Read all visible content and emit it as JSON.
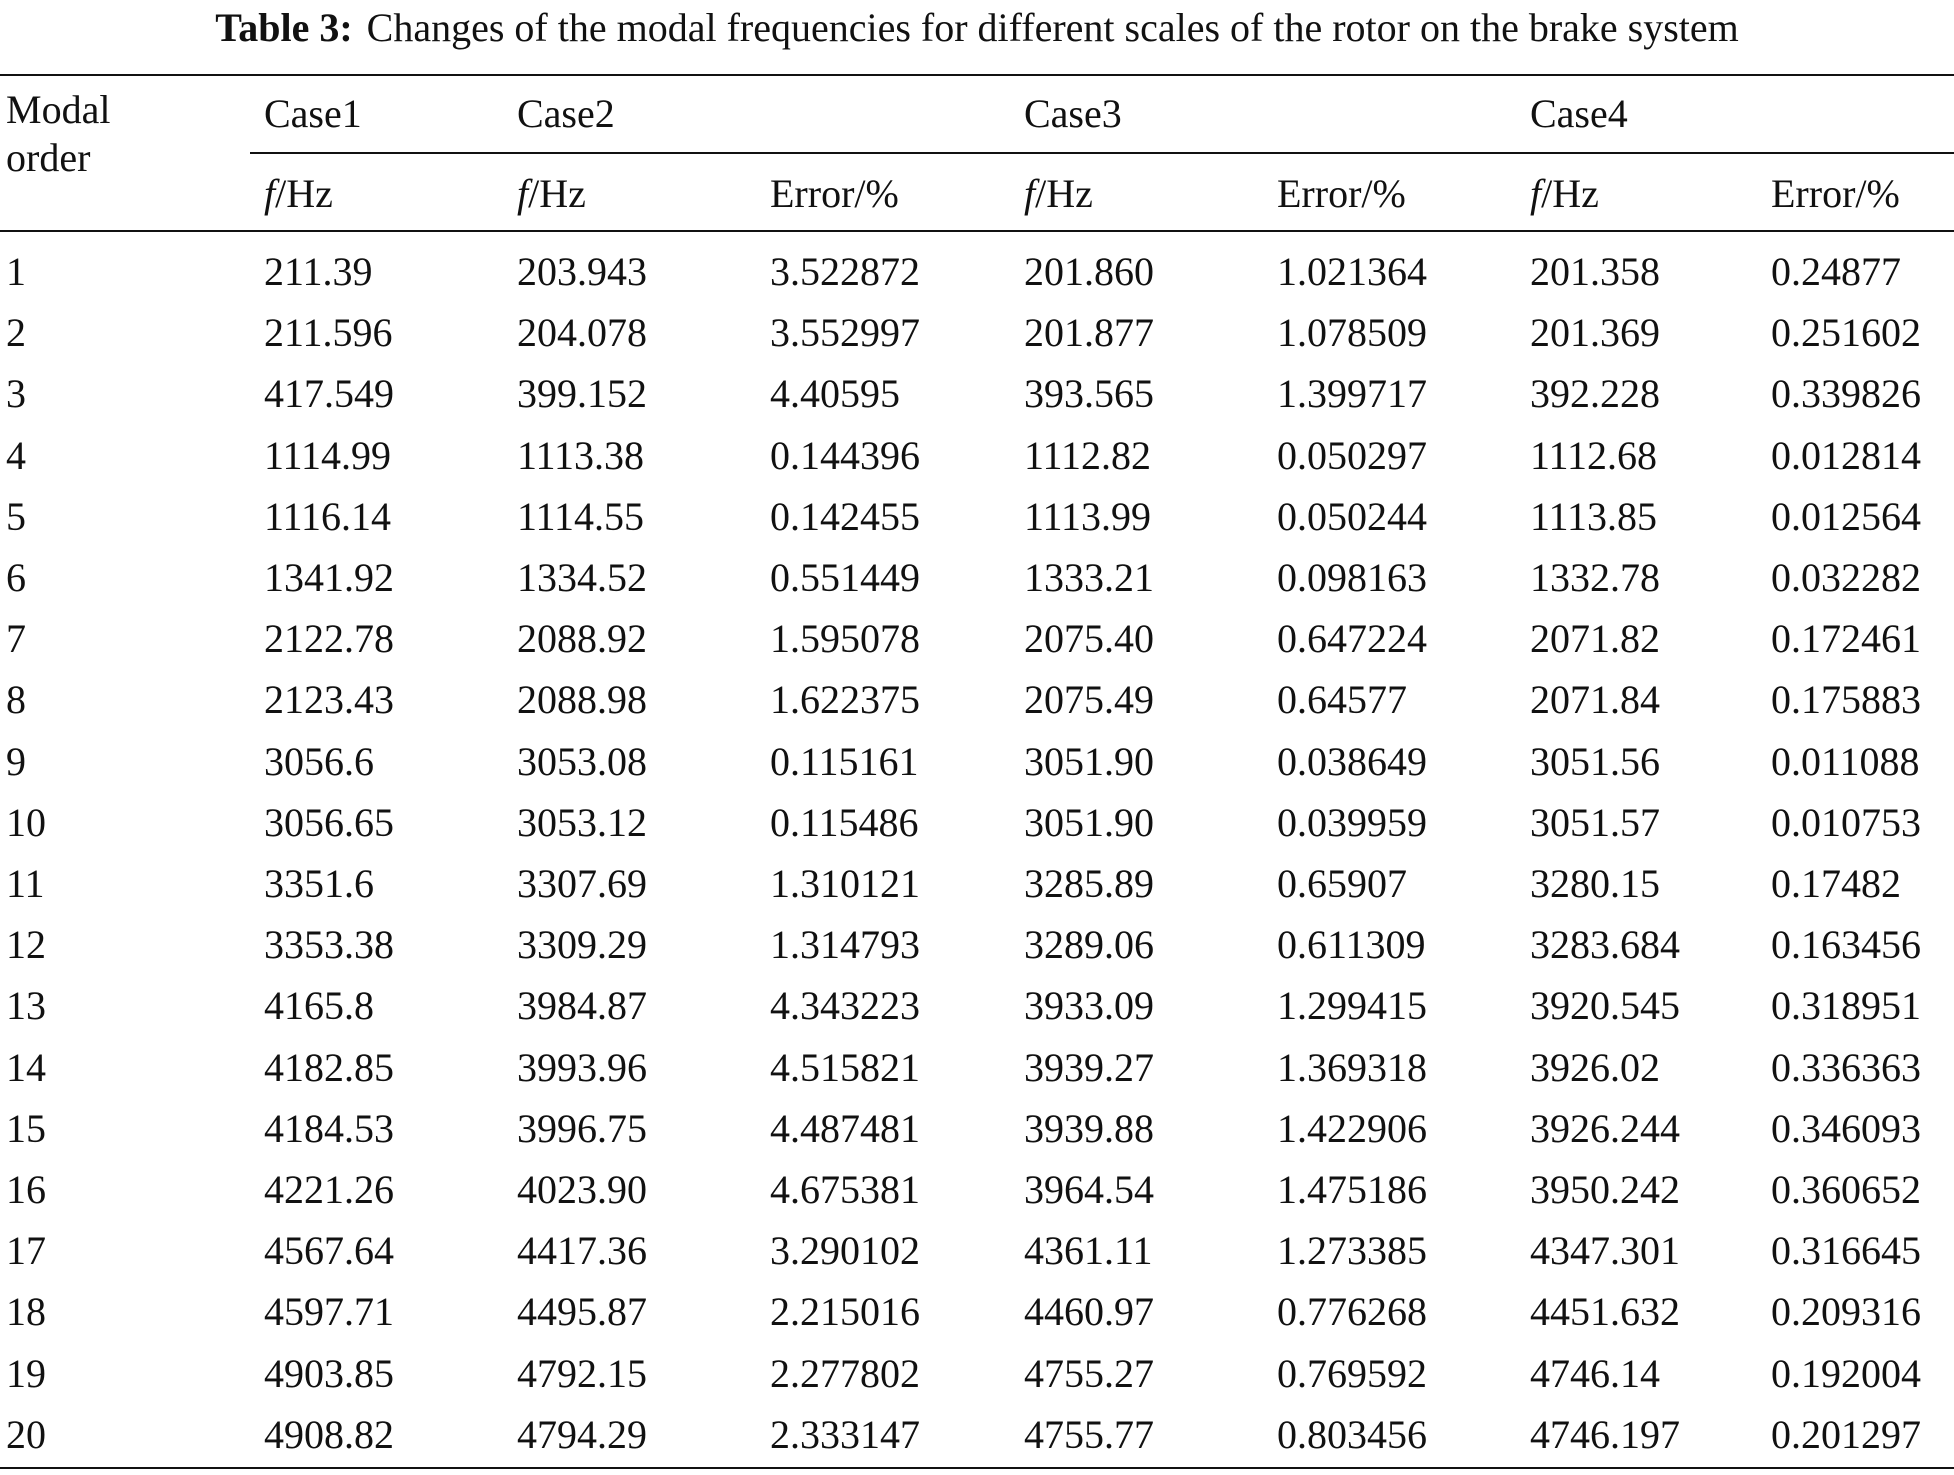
{
  "caption": {
    "label": "Table 3:",
    "text": "Changes of the modal frequencies for different scales of the rotor on the brake system"
  },
  "table": {
    "row_header": "Modal order",
    "groups": [
      "Case1",
      "Case2",
      "Case3",
      "Case4"
    ],
    "sub_headers": [
      {
        "symbol": "f",
        "unit": "/Hz"
      },
      {
        "symbol": "f",
        "unit": "/Hz"
      },
      "Error/%",
      {
        "symbol": "f",
        "unit": "/Hz"
      },
      "Error/%",
      {
        "symbol": "f",
        "unit": "/Hz"
      },
      "Error/%"
    ],
    "rows": [
      [
        "1",
        "211.39",
        "203.943",
        "3.522872",
        "201.860",
        "1.021364",
        "201.358",
        "0.24877"
      ],
      [
        "2",
        "211.596",
        "204.078",
        "3.552997",
        "201.877",
        "1.078509",
        "201.369",
        "0.251602"
      ],
      [
        "3",
        "417.549",
        "399.152",
        "4.40595",
        "393.565",
        "1.399717",
        "392.228",
        "0.339826"
      ],
      [
        "4",
        "1114.99",
        "1113.38",
        "0.144396",
        "1112.82",
        "0.050297",
        "1112.68",
        "0.012814"
      ],
      [
        "5",
        "1116.14",
        "1114.55",
        "0.142455",
        "1113.99",
        "0.050244",
        "1113.85",
        "0.012564"
      ],
      [
        "6",
        "1341.92",
        "1334.52",
        "0.551449",
        "1333.21",
        "0.098163",
        "1332.78",
        "0.032282"
      ],
      [
        "7",
        "2122.78",
        "2088.92",
        "1.595078",
        "2075.40",
        "0.647224",
        "2071.82",
        "0.172461"
      ],
      [
        "8",
        "2123.43",
        "2088.98",
        "1.622375",
        "2075.49",
        "0.64577",
        "2071.84",
        "0.175883"
      ],
      [
        "9",
        "3056.6",
        "3053.08",
        "0.115161",
        "3051.90",
        "0.038649",
        "3051.56",
        "0.011088"
      ],
      [
        "10",
        "3056.65",
        "3053.12",
        "0.115486",
        "3051.90",
        "0.039959",
        "3051.57",
        "0.010753"
      ],
      [
        "11",
        "3351.6",
        "3307.69",
        "1.310121",
        "3285.89",
        "0.65907",
        "3280.15",
        "0.17482"
      ],
      [
        "12",
        "3353.38",
        "3309.29",
        "1.314793",
        "3289.06",
        "0.611309",
        "3283.684",
        "0.163456"
      ],
      [
        "13",
        "4165.8",
        "3984.87",
        "4.343223",
        "3933.09",
        "1.299415",
        "3920.545",
        "0.318951"
      ],
      [
        "14",
        "4182.85",
        "3993.96",
        "4.515821",
        "3939.27",
        "1.369318",
        "3926.02",
        "0.336363"
      ],
      [
        "15",
        "4184.53",
        "3996.75",
        "4.487481",
        "3939.88",
        "1.422906",
        "3926.244",
        "0.346093"
      ],
      [
        "16",
        "4221.26",
        "4023.90",
        "4.675381",
        "3964.54",
        "1.475186",
        "3950.242",
        "0.360652"
      ],
      [
        "17",
        "4567.64",
        "4417.36",
        "3.290102",
        "4361.11",
        "1.273385",
        "4347.301",
        "0.316645"
      ],
      [
        "18",
        "4597.71",
        "4495.87",
        "2.215016",
        "4460.97",
        "0.776268",
        "4451.632",
        "0.209316"
      ],
      [
        "19",
        "4903.85",
        "4792.15",
        "2.277802",
        "4755.27",
        "0.769592",
        "4746.14",
        "0.192004"
      ],
      [
        "20",
        "4908.82",
        "4794.29",
        "2.333147",
        "4755.77",
        "0.803456",
        "4746.197",
        "0.201297"
      ]
    ]
  }
}
